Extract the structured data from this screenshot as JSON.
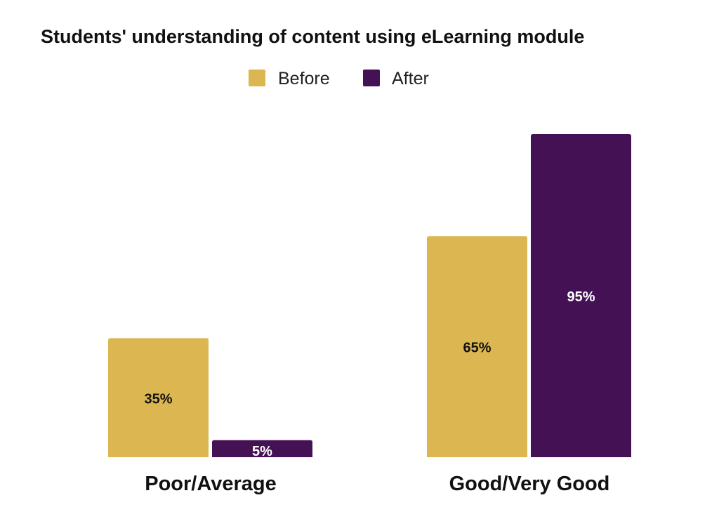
{
  "chart_data": {
    "type": "bar",
    "title": "Students' understanding of content using eLearning module",
    "categories": [
      "Poor/Average",
      "Good/Very Good"
    ],
    "series": [
      {
        "name": "Before",
        "color": "#dcb650",
        "label_color": "#111111",
        "values": [
          35,
          65
        ],
        "labels": [
          "35%",
          "65%"
        ]
      },
      {
        "name": "After",
        "color": "#441254",
        "label_color": "#ffffff",
        "values": [
          5,
          95
        ],
        "labels": [
          "5%",
          "95%"
        ]
      }
    ],
    "xlabel": "",
    "ylabel": "",
    "ylim": [
      0,
      100
    ],
    "grid": false,
    "legend": "top-center",
    "value_unit": "%"
  }
}
